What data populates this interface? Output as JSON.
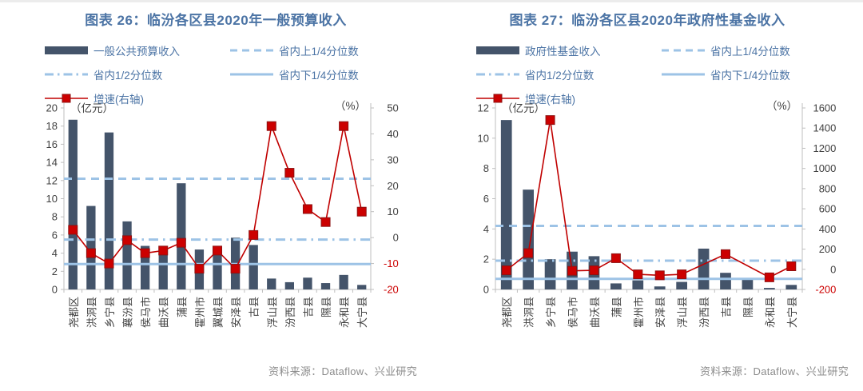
{
  "colors": {
    "title": "#4C74A5",
    "bar": "#44546A",
    "quartile": "#9DC3E6",
    "growth_line": "#C00000",
    "growth_fill": "#CC0000",
    "growth_border": "#8D1212",
    "negative_label": "#CC0000",
    "axis_text": "#404040",
    "axis_line": "#BFBFBF",
    "source_text": "#8C8C8C"
  },
  "chart_data": [
    {
      "type": "bar",
      "title": "图表 26：临汾各区县2020年一般预算收入",
      "unit_left": "（亿元）",
      "unit_right": "（%）",
      "source": "资料来源：Dataflow、兴业研究",
      "categories": [
        "尧都区",
        "洪洞县",
        "乡宁县",
        "襄汾县",
        "侯马市",
        "曲沃县",
        "蒲县",
        "霍州市",
        "翼城县",
        "安泽县",
        "古县",
        "浮山县",
        "汾西县",
        "吉县",
        "隰县",
        "永和县",
        "大宁县"
      ],
      "axis_left": {
        "min": 0,
        "max": 20,
        "step": 2
      },
      "axis_right": {
        "min": -20,
        "max": 50,
        "step": 10
      },
      "legend": [
        {
          "label": "一般公共预算收入",
          "swatch": "bar"
        },
        {
          "label": "省内上1/4分位数",
          "swatch": "dashed"
        },
        {
          "label": "省内1/2分位数",
          "swatch": "dashdot"
        },
        {
          "label": "省内下1/4分位数",
          "swatch": "solid"
        },
        {
          "label": "增速(右轴)",
          "swatch": "growth"
        }
      ],
      "series": [
        {
          "name": "一般公共预算收入",
          "type": "bar",
          "axis": "left",
          "values": [
            18.7,
            9.2,
            17.3,
            7.5,
            4.8,
            3.8,
            11.7,
            4.4,
            3.9,
            5.7,
            4.9,
            1.2,
            0.8,
            1.3,
            0.7,
            1.6,
            0.5
          ]
        },
        {
          "name": "省内上1/4分位数",
          "type": "hline",
          "style": "dashed",
          "axis": "left",
          "value": 12.2
        },
        {
          "name": "省内1/2分位数",
          "type": "hline",
          "style": "dashdot",
          "axis": "left",
          "value": 5.5
        },
        {
          "name": "省内下1/4分位数",
          "type": "hline",
          "style": "solid",
          "axis": "left",
          "value": 2.8
        },
        {
          "name": "增速(右轴)",
          "type": "line",
          "axis": "right",
          "values": [
            3,
            -6,
            -10,
            -1,
            -6,
            -5,
            -2,
            -12,
            -5,
            -12,
            1,
            43,
            25,
            11,
            6,
            43,
            10
          ]
        }
      ]
    },
    {
      "type": "bar",
      "title": "图表 27：临汾各区县2020年政府性基金收入",
      "unit_left": "（亿元）",
      "unit_right": "（%）",
      "source": "资料来源：Dataflow、兴业研究",
      "categories": [
        "尧都区",
        "洪洞县",
        "乡宁县",
        "侯马市",
        "曲沃县",
        "蒲县",
        "霍州市",
        "安泽县",
        "浮山县",
        "汾西县",
        "吉县",
        "隰县",
        "永和县",
        "大宁县"
      ],
      "axis_left": {
        "min": 0,
        "max": 12,
        "step": 2
      },
      "axis_right": {
        "min": -200,
        "max": 1600,
        "step": 200
      },
      "legend": [
        {
          "label": "政府性基金收入",
          "swatch": "bar"
        },
        {
          "label": "省内上1/4分位数",
          "swatch": "dashed"
        },
        {
          "label": "省内1/2分位数",
          "swatch": "dashdot"
        },
        {
          "label": "省内下1/4分位数",
          "swatch": "solid"
        },
        {
          "label": "增速(右轴)",
          "swatch": "growth"
        }
      ],
      "series": [
        {
          "name": "政府性基金收入",
          "type": "bar",
          "axis": "left",
          "values": [
            11.2,
            6.6,
            2.0,
            2.5,
            2.2,
            0.4,
            0.6,
            0.2,
            0.5,
            2.7,
            1.1,
            0.7,
            0.1,
            0.3
          ]
        },
        {
          "name": "省内上1/4分位数",
          "type": "hline",
          "style": "dashed",
          "axis": "left",
          "value": 4.2
        },
        {
          "name": "省内1/2分位数",
          "type": "hline",
          "style": "dashdot",
          "axis": "left",
          "value": 1.9
        },
        {
          "name": "省内下1/4分位数",
          "type": "hline",
          "style": "solid",
          "axis": "left",
          "value": 0.7
        },
        {
          "name": "增速(右轴)",
          "type": "line",
          "axis": "right",
          "values": [
            -10,
            160,
            1480,
            -15,
            -10,
            110,
            -50,
            -60,
            -50,
            null,
            150,
            null,
            -80,
            30
          ]
        }
      ]
    }
  ]
}
